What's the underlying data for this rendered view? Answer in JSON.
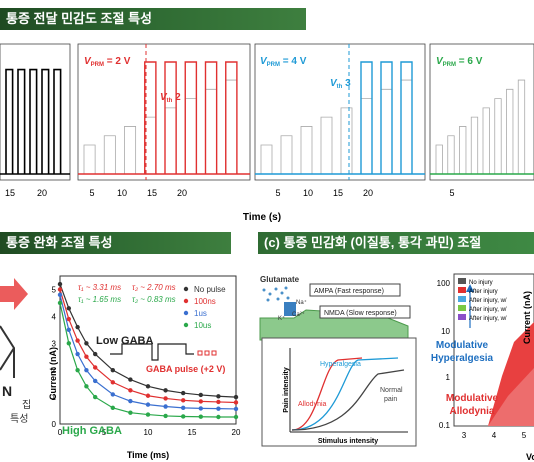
{
  "banners": {
    "top": "통증 전달 민감도 조절 특성",
    "bottom_left": "통증 완화 조절 특성",
    "bottom_right": "(c) 통증 민감화 (이질통, 통각 과민) 조절"
  },
  "top_figure": {
    "xlabel": "Time (s)",
    "ticks": [
      "15",
      "20",
      "5",
      "10",
      "15",
      "20",
      "5",
      "10",
      "15",
      "20",
      "5"
    ],
    "panels": [
      {
        "label": "",
        "color": "#000000"
      },
      {
        "label": "V",
        "sub": "PRM",
        "value": " = 2 V",
        "th": "V",
        "thsub": "th",
        "thval": " 2",
        "color": "#e03030"
      },
      {
        "label": "V",
        "sub": "PRM",
        "value": " = 4 V",
        "th": "V",
        "thsub": "th",
        "thval": " 3",
        "color": "#1e9ad6"
      },
      {
        "label": "V",
        "sub": "PRM",
        "value": " = 6 V",
        "color": "#2aa84a"
      }
    ]
  },
  "left_fragment": {
    "letter": "N",
    "line1": "집",
    "line2": "특성"
  },
  "gaba_chart": {
    "ylabel": "Current (nA)",
    "xlabel": "Time (ms)",
    "xticks": [
      "0",
      "5",
      "10",
      "15",
      "20"
    ],
    "yticks": [
      "0",
      "1",
      "2",
      "3",
      "4",
      "5"
    ],
    "tau_line1a": "τ₁ ~ 3.31 ms",
    "tau_line1b": "τ₂ ~ 2.70 ms",
    "tau_line2a": "τ₁ ~ 1.65 ms",
    "tau_line2b": "τ₂ ~ 0.83 ms",
    "low_gaba": "Low GABA",
    "high_gaba": "High GABA",
    "pulse_label": "GABA pulse (+2 V)",
    "legend": [
      {
        "name": "No pulse",
        "color": "#333333"
      },
      {
        "name": "100ns",
        "color": "#e03030"
      },
      {
        "name": "1us",
        "color": "#3a6fd0"
      },
      {
        "name": "10us",
        "color": "#2aa84a"
      }
    ],
    "chart_data": {
      "type": "scatter",
      "x": [
        0,
        1,
        2,
        3,
        4,
        6,
        8,
        10,
        12,
        14,
        16,
        18,
        20
      ],
      "series": [
        {
          "name": "No pulse",
          "values": [
            5.2,
            4.3,
            3.6,
            3.0,
            2.6,
            2.0,
            1.65,
            1.4,
            1.25,
            1.15,
            1.08,
            1.03,
            1.0
          ]
        },
        {
          "name": "100ns",
          "values": [
            5.0,
            3.9,
            3.1,
            2.5,
            2.1,
            1.55,
            1.25,
            1.05,
            0.95,
            0.88,
            0.84,
            0.82,
            0.8
          ]
        },
        {
          "name": "1us",
          "values": [
            4.8,
            3.5,
            2.6,
            2.0,
            1.6,
            1.1,
            0.85,
            0.72,
            0.65,
            0.6,
            0.58,
            0.57,
            0.56
          ]
        },
        {
          "name": "10us",
          "values": [
            4.5,
            3.0,
            2.0,
            1.4,
            1.0,
            0.6,
            0.42,
            0.35,
            0.3,
            0.28,
            0.27,
            0.26,
            0.26
          ]
        }
      ],
      "xlim": [
        0,
        20
      ],
      "ylim": [
        0,
        5.5
      ]
    }
  },
  "glutamate": {
    "title": "Glutamate",
    "ampa": "AMPA (Fast response)",
    "nmda": "NMDA (Slow response)",
    "na": "Na⁺",
    "k": "K⁺",
    "ca": "Ca²⁺",
    "inset_y": "Pain intensity",
    "inset_x": "Stimulus intensity",
    "hyperalgesia": "Hyperalgesia",
    "allodynia": "Allodynia",
    "normal": "Normal",
    "pain": "pain"
  },
  "right_chart": {
    "ylabel": "Current (nA)",
    "xlabel": "Volt",
    "yticks": [
      "100",
      "10",
      "1",
      "0.1"
    ],
    "xticks": [
      "3",
      "4",
      "5"
    ],
    "legend": [
      {
        "name": "No injury",
        "color": "#555555"
      },
      {
        "name": "After injury",
        "color": "#e03030"
      },
      {
        "name": "After injury, w/",
        "color": "#4aa8e0"
      },
      {
        "name": "After injury, w/",
        "color": "#7ac943"
      },
      {
        "name": "After injury, w/",
        "color": "#8a4fc8"
      }
    ],
    "hyper1": "Modulative",
    "hyper2": "Hyperalgesia",
    "allo1": "Modulative",
    "allo2": "Allodynia"
  }
}
